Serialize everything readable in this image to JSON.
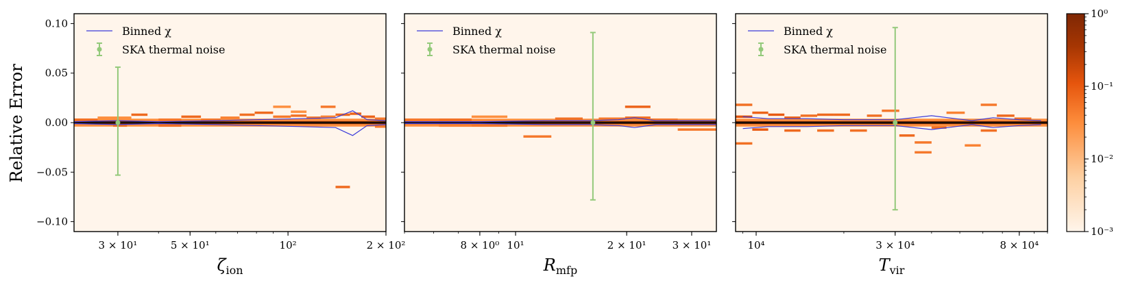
{
  "chart_data": {
    "type": "heatmap",
    "ylabel": "Relative Error",
    "ylim": [
      -0.11,
      0.11
    ],
    "yticks": [
      {
        "value": 0.1,
        "label": "0.10"
      },
      {
        "value": 0.05,
        "label": "0.05"
      },
      {
        "value": 0.0,
        "label": "0.00"
      },
      {
        "value": -0.05,
        "label": "−0.05"
      },
      {
        "value": -0.1,
        "label": "−0.10"
      }
    ],
    "legend": {
      "line_label": "Binned χ",
      "errorbar_label": "SKA thermal noise",
      "line_color": "#3a3ad9",
      "errorbar_color": "#93c97a"
    },
    "colorbar": {
      "scale": "log",
      "range": [
        0.001,
        1
      ],
      "ticks": [
        {
          "value": 1,
          "label": "10⁰"
        },
        {
          "value": 0.1,
          "label": "10⁻¹"
        },
        {
          "value": 0.01,
          "label": "10⁻²"
        },
        {
          "value": 0.001,
          "label": "10⁻³"
        }
      ],
      "colors": [
        "#fff5eb",
        "#fdd0a2",
        "#fd8d3c",
        "#e6550d",
        "#a63603",
        "#7f2704"
      ]
    },
    "panels": [
      {
        "xlabel": "ζ",
        "xlabel_sub": "ion",
        "xlim": [
          22,
          200
        ],
        "xticks": [
          {
            "value": 30,
            "label": "3 × 10¹"
          },
          {
            "value": 50,
            "label": "5 × 10¹"
          },
          {
            "value": 100,
            "label": "10²"
          },
          {
            "value": 200,
            "label": "2 × 10²"
          }
        ],
        "errorbar": {
          "x": 30,
          "y": 0.0,
          "lo": -0.053,
          "hi": 0.056
        },
        "binned_chi_upper": [
          [
            22,
            0.001
          ],
          [
            30,
            0.002
          ],
          [
            40,
            0.001
          ],
          [
            60,
            0.002
          ],
          [
            80,
            0.003
          ],
          [
            110,
            0.004
          ],
          [
            140,
            0.005
          ],
          [
            158,
            0.012
          ],
          [
            175,
            0.003
          ],
          [
            200,
            0.002
          ]
        ],
        "binned_chi_lower": [
          [
            22,
            -0.001
          ],
          [
            30,
            -0.002
          ],
          [
            40,
            -0.001
          ],
          [
            60,
            -0.002
          ],
          [
            80,
            -0.003
          ],
          [
            110,
            -0.004
          ],
          [
            140,
            -0.005
          ],
          [
            158,
            -0.013
          ],
          [
            175,
            -0.003
          ],
          [
            200,
            -0.002
          ]
        ],
        "cells": [
          {
            "x0": 22,
            "x1": 26,
            "y": 0.003,
            "d": 0.06
          },
          {
            "x0": 26,
            "x1": 33,
            "y": 0.005,
            "d": 0.03
          },
          {
            "x0": 33,
            "x1": 37,
            "y": 0.008,
            "d": 0.07
          },
          {
            "x0": 29,
            "x1": 32,
            "y": -0.003,
            "d": 0.06
          },
          {
            "x0": 40,
            "x1": 47,
            "y": 0.003,
            "d": 0.05
          },
          {
            "x0": 40,
            "x1": 47,
            "y": -0.003,
            "d": 0.06
          },
          {
            "x0": 47,
            "x1": 54,
            "y": 0.006,
            "d": 0.07
          },
          {
            "x0": 54,
            "x1": 62,
            "y": 0.003,
            "d": 0.05
          },
          {
            "x0": 62,
            "x1": 71,
            "y": 0.005,
            "d": 0.04
          },
          {
            "x0": 71,
            "x1": 79,
            "y": 0.008,
            "d": 0.06
          },
          {
            "x0": 79,
            "x1": 90,
            "y": 0.01,
            "d": 0.07
          },
          {
            "x0": 90,
            "x1": 102,
            "y": 0.016,
            "d": 0.03
          },
          {
            "x0": 90,
            "x1": 102,
            "y": 0.006,
            "d": 0.05
          },
          {
            "x0": 102,
            "x1": 114,
            "y": 0.007,
            "d": 0.06
          },
          {
            "x0": 102,
            "x1": 114,
            "y": 0.011,
            "d": 0.03
          },
          {
            "x0": 114,
            "x1": 126,
            "y": 0.005,
            "d": 0.05
          },
          {
            "x0": 126,
            "x1": 140,
            "y": 0.016,
            "d": 0.05
          },
          {
            "x0": 126,
            "x1": 140,
            "y": 0.006,
            "d": 0.04
          },
          {
            "x0": 140,
            "x1": 155,
            "y": 0.008,
            "d": 0.07
          },
          {
            "x0": 155,
            "x1": 168,
            "y": 0.009,
            "d": 0.08
          },
          {
            "x0": 168,
            "x1": 185,
            "y": 0.006,
            "d": 0.08
          },
          {
            "x0": 185,
            "x1": 200,
            "y": 0.004,
            "d": 0.05
          },
          {
            "x0": 185,
            "x1": 200,
            "y": -0.004,
            "d": 0.05
          },
          {
            "x0": 140,
            "x1": 155,
            "y": -0.065,
            "d": 0.07
          }
        ]
      },
      {
        "xlabel": "R",
        "xlabel_sub": "mfp",
        "xlim": [
          5.0,
          35.0
        ],
        "xticks": [
          {
            "value": 8,
            "label": "8 × 10⁰"
          },
          {
            "value": 10,
            "label": "10¹"
          },
          {
            "value": 20,
            "label": "2 × 10¹"
          },
          {
            "value": 30,
            "label": "3 × 10¹"
          }
        ],
        "errorbar": {
          "x": 16.2,
          "y": 0.0,
          "lo": -0.078,
          "hi": 0.091
        },
        "binned_chi_upper": [
          [
            5,
            0.001
          ],
          [
            8,
            0.001
          ],
          [
            12,
            0.002
          ],
          [
            16,
            0.002
          ],
          [
            19,
            0.003
          ],
          [
            21,
            0.005
          ],
          [
            24,
            0.002
          ],
          [
            28,
            0.002
          ],
          [
            35,
            0.002
          ]
        ],
        "binned_chi_lower": [
          [
            5,
            -0.001
          ],
          [
            8,
            -0.001
          ],
          [
            12,
            -0.002
          ],
          [
            16,
            -0.002
          ],
          [
            19,
            -0.003
          ],
          [
            21,
            -0.005
          ],
          [
            24,
            -0.002
          ],
          [
            28,
            -0.002
          ],
          [
            35,
            -0.002
          ]
        ],
        "cells": [
          {
            "x0": 5.0,
            "x1": 6.2,
            "y": 0.003,
            "d": 0.05
          },
          {
            "x0": 6.2,
            "x1": 7.6,
            "y": 0.003,
            "d": 0.06
          },
          {
            "x0": 6.2,
            "x1": 7.6,
            "y": -0.003,
            "d": 0.04
          },
          {
            "x0": 7.6,
            "x1": 9.5,
            "y": 0.006,
            "d": 0.03
          },
          {
            "x0": 7.6,
            "x1": 9.5,
            "y": -0.003,
            "d": 0.05
          },
          {
            "x0": 10.5,
            "x1": 12.5,
            "y": -0.014,
            "d": 0.05
          },
          {
            "x0": 12.8,
            "x1": 15.2,
            "y": 0.004,
            "d": 0.06
          },
          {
            "x0": 16.8,
            "x1": 19.8,
            "y": 0.004,
            "d": 0.05
          },
          {
            "x0": 19.8,
            "x1": 23.2,
            "y": 0.016,
            "d": 0.08
          },
          {
            "x0": 19.8,
            "x1": 23.2,
            "y": 0.005,
            "d": 0.06
          },
          {
            "x0": 23.2,
            "x1": 27.5,
            "y": 0.003,
            "d": 0.05
          },
          {
            "x0": 27.5,
            "x1": 35.0,
            "y": -0.007,
            "d": 0.05
          }
        ]
      },
      {
        "xlabel": "T",
        "xlabel_sub": "vir",
        "xlim": [
          8500,
          100000
        ],
        "xticks": [
          {
            "value": 10000,
            "label": "10⁴"
          },
          {
            "value": 30000,
            "label": "3 × 10⁴"
          },
          {
            "value": 80000,
            "label": "8 × 10⁴"
          }
        ],
        "errorbar": {
          "x": 30000,
          "y": 0.0,
          "lo": -0.088,
          "hi": 0.096
        },
        "binned_chi_upper": [
          [
            9000,
            0.006
          ],
          [
            11000,
            0.004
          ],
          [
            15000,
            0.004
          ],
          [
            20000,
            0.003
          ],
          [
            30000,
            0.003
          ],
          [
            40000,
            0.007
          ],
          [
            55000,
            0.002
          ],
          [
            65000,
            0.005
          ],
          [
            80000,
            0.003
          ],
          [
            95000,
            0.002
          ]
        ],
        "binned_chi_lower": [
          [
            9000,
            -0.006
          ],
          [
            11000,
            -0.004
          ],
          [
            15000,
            -0.004
          ],
          [
            20000,
            -0.003
          ],
          [
            30000,
            -0.003
          ],
          [
            40000,
            -0.007
          ],
          [
            55000,
            -0.002
          ],
          [
            65000,
            -0.005
          ],
          [
            80000,
            -0.003
          ],
          [
            95000,
            -0.002
          ]
        ],
        "cells": [
          {
            "x0": 8500,
            "x1": 9700,
            "y": 0.018,
            "d": 0.06
          },
          {
            "x0": 8500,
            "x1": 9700,
            "y": -0.021,
            "d": 0.06
          },
          {
            "x0": 8500,
            "x1": 9700,
            "y": 0.006,
            "d": 0.12
          },
          {
            "x0": 9700,
            "x1": 11000,
            "y": 0.01,
            "d": 0.08
          },
          {
            "x0": 9700,
            "x1": 11000,
            "y": -0.007,
            "d": 0.1
          },
          {
            "x0": 11000,
            "x1": 12500,
            "y": 0.008,
            "d": 0.1
          },
          {
            "x0": 12500,
            "x1": 14200,
            "y": 0.005,
            "d": 0.08
          },
          {
            "x0": 12500,
            "x1": 14200,
            "y": -0.008,
            "d": 0.07
          },
          {
            "x0": 14200,
            "x1": 16200,
            "y": 0.007,
            "d": 0.06
          },
          {
            "x0": 16200,
            "x1": 18500,
            "y": 0.008,
            "d": 0.07
          },
          {
            "x0": 16200,
            "x1": 18500,
            "y": -0.008,
            "d": 0.06
          },
          {
            "x0": 18500,
            "x1": 21000,
            "y": 0.008,
            "d": 0.07
          },
          {
            "x0": 21000,
            "x1": 24000,
            "y": -0.008,
            "d": 0.06
          },
          {
            "x0": 24000,
            "x1": 27000,
            "y": 0.007,
            "d": 0.06
          },
          {
            "x0": 27000,
            "x1": 31000,
            "y": 0.012,
            "d": 0.05
          },
          {
            "x0": 31000,
            "x1": 35000,
            "y": -0.013,
            "d": 0.07
          },
          {
            "x0": 35000,
            "x1": 40000,
            "y": -0.02,
            "d": 0.05
          },
          {
            "x0": 35000,
            "x1": 40000,
            "y": -0.03,
            "d": 0.05
          },
          {
            "x0": 40000,
            "x1": 45000,
            "y": -0.005,
            "d": 0.06
          },
          {
            "x0": 45000,
            "x1": 52000,
            "y": 0.01,
            "d": 0.04
          },
          {
            "x0": 52000,
            "x1": 59000,
            "y": -0.023,
            "d": 0.04
          },
          {
            "x0": 59000,
            "x1": 67000,
            "y": 0.018,
            "d": 0.05
          },
          {
            "x0": 59000,
            "x1": 67000,
            "y": -0.008,
            "d": 0.06
          },
          {
            "x0": 67000,
            "x1": 77000,
            "y": 0.007,
            "d": 0.07
          },
          {
            "x0": 77000,
            "x1": 88000,
            "y": 0.004,
            "d": 0.06
          }
        ]
      }
    ]
  }
}
